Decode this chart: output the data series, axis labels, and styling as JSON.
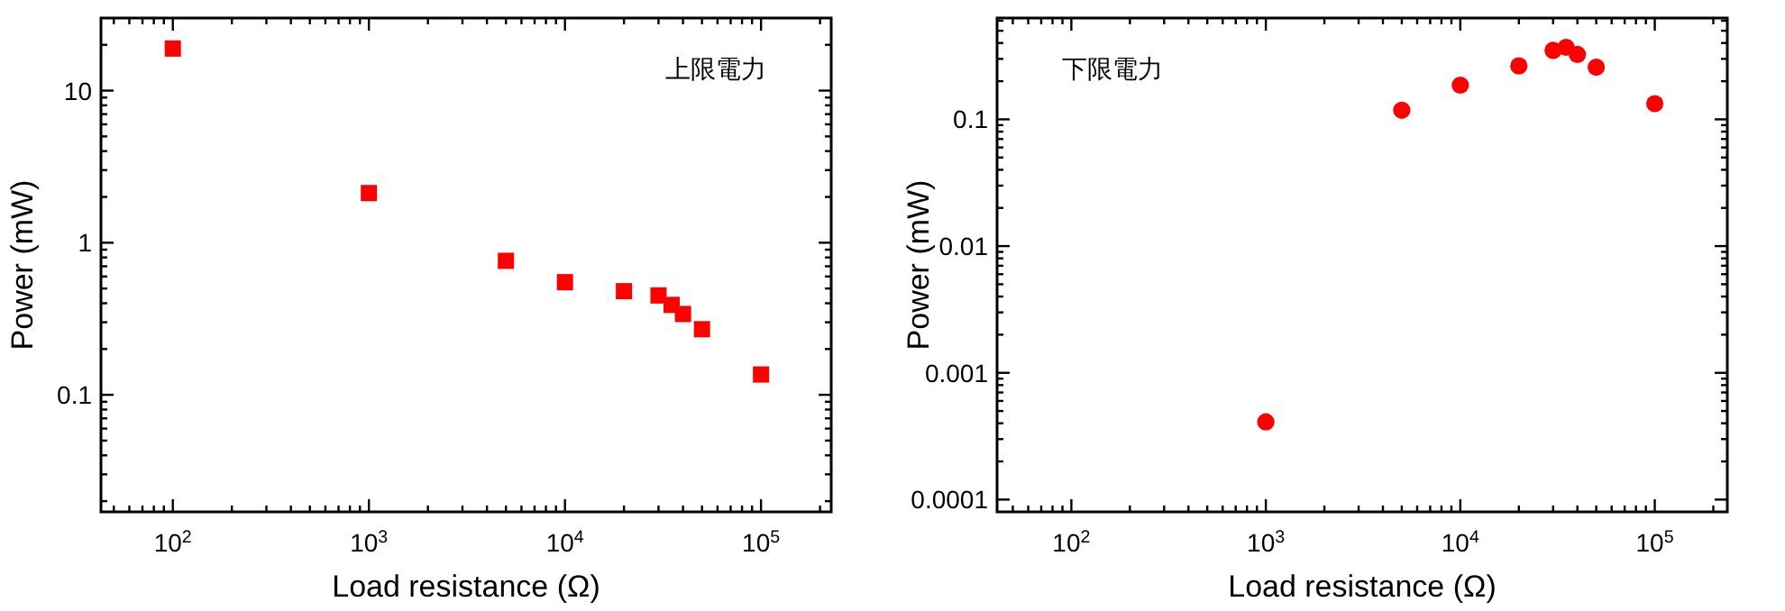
{
  "chart_data": [
    {
      "type": "scatter",
      "xlabel": "Load resistance (Ω)",
      "ylabel": "Power (mW)",
      "annotations": [
        "上限電力"
      ],
      "log": "xy",
      "marker": "square",
      "grid": false,
      "xlim": [
        43,
        228000
      ],
      "ylim": [
        0.017,
        30
      ],
      "xticks": [
        {
          "value": 50,
          "label": null
        },
        {
          "value": 60,
          "label": null
        },
        {
          "value": 70,
          "label": null
        },
        {
          "value": 80,
          "label": null
        },
        {
          "value": 90,
          "label": null
        },
        {
          "value": 100,
          "label": "10$^{2}$"
        },
        {
          "value": 200,
          "label": null
        },
        {
          "value": 300,
          "label": null
        },
        {
          "value": 400,
          "label": null
        },
        {
          "value": 500,
          "label": null
        },
        {
          "value": 600,
          "label": null
        },
        {
          "value": 700,
          "label": null
        },
        {
          "value": 800,
          "label": null
        },
        {
          "value": 900,
          "label": null
        },
        {
          "value": 1000,
          "label": "10$^{3}$"
        },
        {
          "value": 2000,
          "label": null
        },
        {
          "value": 3000,
          "label": null
        },
        {
          "value": 4000,
          "label": null
        },
        {
          "value": 5000,
          "label": null
        },
        {
          "value": 6000,
          "label": null
        },
        {
          "value": 7000,
          "label": null
        },
        {
          "value": 8000,
          "label": null
        },
        {
          "value": 9000,
          "label": null
        },
        {
          "value": 10000,
          "label": "10$^{4}$"
        },
        {
          "value": 20000,
          "label": null
        },
        {
          "value": 30000,
          "label": null
        },
        {
          "value": 40000,
          "label": null
        },
        {
          "value": 50000,
          "label": null
        },
        {
          "value": 60000,
          "label": null
        },
        {
          "value": 70000,
          "label": null
        },
        {
          "value": 80000,
          "label": null
        },
        {
          "value": 90000,
          "label": null
        },
        {
          "value": 100000,
          "label": "10$^{5}$"
        },
        {
          "value": 200000,
          "label": null
        }
      ],
      "yticks": [
        {
          "value": 0.02,
          "label": null
        },
        {
          "value": 0.03,
          "label": null
        },
        {
          "value": 0.04,
          "label": null
        },
        {
          "value": 0.05,
          "label": null
        },
        {
          "value": 0.06,
          "label": null
        },
        {
          "value": 0.07,
          "label": null
        },
        {
          "value": 0.08,
          "label": null
        },
        {
          "value": 0.09,
          "label": null
        },
        0.1,
        {
          "value": 0.2,
          "label": null
        },
        {
          "value": 0.3,
          "label": null
        },
        {
          "value": 0.4,
          "label": null
        },
        {
          "value": 0.5,
          "label": null
        },
        {
          "value": 0.6,
          "label": null
        },
        {
          "value": 0.7,
          "label": null
        },
        {
          "value": 0.8,
          "label": null
        },
        {
          "value": 0.9,
          "label": null
        },
        1,
        {
          "value": 2,
          "label": null
        },
        {
          "value": 3,
          "label": null
        },
        {
          "value": 4,
          "label": null
        },
        {
          "value": 5,
          "label": null
        },
        {
          "value": 6,
          "label": null
        },
        {
          "value": 7,
          "label": null
        },
        {
          "value": 8,
          "label": null
        },
        {
          "value": 9,
          "label": null
        },
        10,
        {
          "value": 20,
          "label": null
        }
      ],
      "x": [
        100,
        1000,
        5000,
        10000,
        20000,
        30000,
        35000,
        40000,
        50000,
        100000
      ],
      "series": [
        {
          "color": "#ff0000",
          "values": [
            18.9,
            2.12,
            0.76,
            0.55,
            0.48,
            0.45,
            0.39,
            0.34,
            0.27,
            0.136
          ]
        }
      ]
    },
    {
      "type": "scatter",
      "xlabel": "Load resistance (Ω)",
      "ylabel": "Power (mW)",
      "annotations": [
        "下限電力"
      ],
      "log": "xy",
      "marker": "circle",
      "grid": false,
      "xlim": [
        41.5,
        236000
      ],
      "ylim": [
        8e-05,
        0.63
      ],
      "xticks": [
        {
          "value": 50,
          "label": null
        },
        {
          "value": 60,
          "label": null
        },
        {
          "value": 70,
          "label": null
        },
        {
          "value": 80,
          "label": null
        },
        {
          "value": 90,
          "label": null
        },
        {
          "value": 100,
          "label": "10$^{2}$"
        },
        {
          "value": 200,
          "label": null
        },
        {
          "value": 300,
          "label": null
        },
        {
          "value": 400,
          "label": null
        },
        {
          "value": 500,
          "label": null
        },
        {
          "value": 600,
          "label": null
        },
        {
          "value": 700,
          "label": null
        },
        {
          "value": 800,
          "label": null
        },
        {
          "value": 900,
          "label": null
        },
        {
          "value": 1000,
          "label": "10$^{3}$"
        },
        {
          "value": 2000,
          "label": null
        },
        {
          "value": 3000,
          "label": null
        },
        {
          "value": 4000,
          "label": null
        },
        {
          "value": 5000,
          "label": null
        },
        {
          "value": 6000,
          "label": null
        },
        {
          "value": 7000,
          "label": null
        },
        {
          "value": 8000,
          "label": null
        },
        {
          "value": 9000,
          "label": null
        },
        {
          "value": 10000,
          "label": "10$^{4}$"
        },
        {
          "value": 20000,
          "label": null
        },
        {
          "value": 30000,
          "label": null
        },
        {
          "value": 40000,
          "label": null
        },
        {
          "value": 50000,
          "label": null
        },
        {
          "value": 60000,
          "label": null
        },
        {
          "value": 70000,
          "label": null
        },
        {
          "value": 80000,
          "label": null
        },
        {
          "value": 90000,
          "label": null
        },
        {
          "value": 100000,
          "label": "10$^{5}$"
        },
        {
          "value": 200000,
          "label": null
        }
      ],
      "yticks": [
        0.0001,
        {
          "value": 0.0002,
          "label": null
        },
        {
          "value": 0.0003,
          "label": null
        },
        {
          "value": 0.0004,
          "label": null
        },
        {
          "value": 0.0005,
          "label": null
        },
        {
          "value": 0.0006,
          "label": null
        },
        {
          "value": 0.0007,
          "label": null
        },
        {
          "value": 0.0008,
          "label": null
        },
        {
          "value": 0.0009,
          "label": null
        },
        0.001,
        {
          "value": 0.002,
          "label": null
        },
        {
          "value": 0.003,
          "label": null
        },
        {
          "value": 0.004,
          "label": null
        },
        {
          "value": 0.005,
          "label": null
        },
        {
          "value": 0.006,
          "label": null
        },
        {
          "value": 0.007,
          "label": null
        },
        {
          "value": 0.008,
          "label": null
        },
        {
          "value": 0.009,
          "label": null
        },
        0.01,
        {
          "value": 0.02,
          "label": null
        },
        {
          "value": 0.03,
          "label": null
        },
        {
          "value": 0.04,
          "label": null
        },
        {
          "value": 0.05,
          "label": null
        },
        {
          "value": 0.06,
          "label": null
        },
        {
          "value": 0.07,
          "label": null
        },
        {
          "value": 0.08,
          "label": null
        },
        {
          "value": 0.09,
          "label": null
        },
        0.1,
        {
          "value": 0.2,
          "label": null
        },
        {
          "value": 0.3,
          "label": null
        },
        {
          "value": 0.4,
          "label": null
        },
        {
          "value": 0.5,
          "label": null
        },
        {
          "value": 0.6,
          "label": null
        }
      ],
      "x": [
        1000,
        5000,
        10000,
        20000,
        30000,
        35000,
        40000,
        50000,
        100000
      ],
      "series": [
        {
          "color": "#ff0000",
          "values": [
            0.00041,
            0.118,
            0.186,
            0.264,
            0.35,
            0.37,
            0.325,
            0.258,
            0.133
          ]
        }
      ]
    }
  ]
}
